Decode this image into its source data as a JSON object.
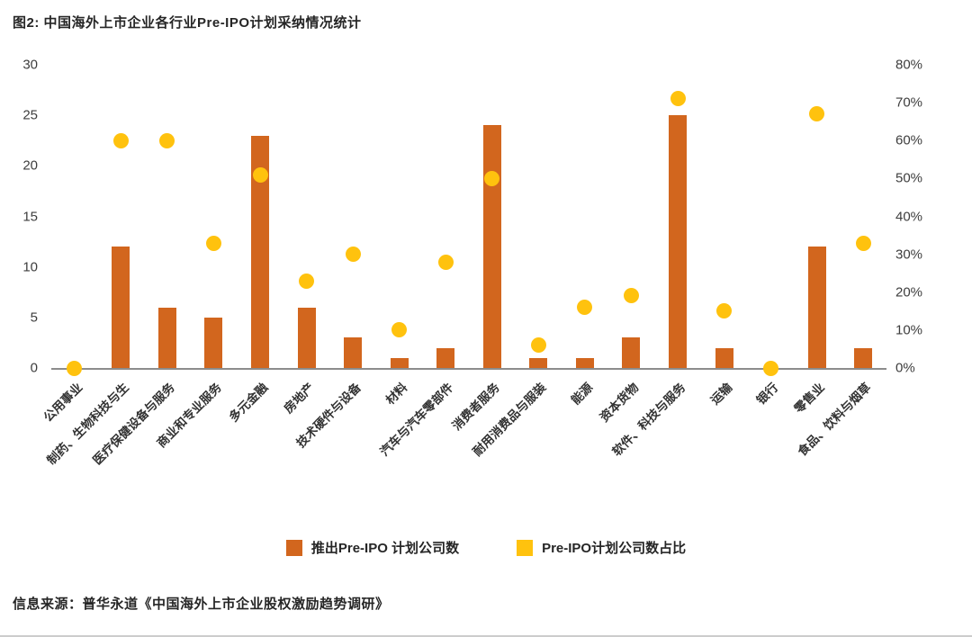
{
  "title": "图2: 中国海外上市企业各行业Pre-IPO计划采纳情况统计",
  "source": "信息来源：普华永道《中国海外上市企业股权激励趋势调研》",
  "colors": {
    "bar": "#D2661E",
    "dot": "#FFC20E"
  },
  "chart_data": {
    "type": "bar",
    "subtype": "bar+scatter dual-axis",
    "title": "图2: 中国海外上市企业各行业Pre-IPO计划采纳情况统计",
    "grid": false,
    "legend_position": "bottom",
    "categories": [
      "公用事业",
      "制药、生物科技与生",
      "医疗保健设备与服务",
      "商业和专业服务",
      "多元金融",
      "房地产",
      "技术硬件与设备",
      "材料",
      "汽车与汽车零部件",
      "消费者服务",
      "耐用消费品与服装",
      "能源",
      "资本货物",
      "软件、科技与服务",
      "运输",
      "银行",
      "零售业",
      "食品、饮料与烟草"
    ],
    "series": [
      {
        "name": "推出Pre-IPO 计划公司数",
        "type": "bar",
        "axis": "left",
        "values": [
          0,
          12,
          6,
          5,
          23,
          6,
          3,
          1,
          2,
          24,
          1,
          1,
          3,
          25,
          2,
          0,
          12,
          2
        ]
      },
      {
        "name": "Pre-IPO计划公司数占比",
        "type": "scatter",
        "axis": "right",
        "unit": "%",
        "values": [
          0,
          60,
          60,
          33,
          51,
          23,
          30,
          10,
          28,
          50,
          6,
          16,
          19,
          71,
          15,
          0,
          67,
          33
        ]
      }
    ],
    "left_axis": {
      "min": 0,
      "max": 30,
      "ticks": [
        0,
        5,
        10,
        15,
        20,
        25,
        30
      ]
    },
    "right_axis": {
      "min": 0,
      "max": 80,
      "ticks": [
        "0%",
        "10%",
        "20%",
        "30%",
        "40%",
        "50%",
        "60%",
        "70%",
        "80%"
      ]
    }
  }
}
